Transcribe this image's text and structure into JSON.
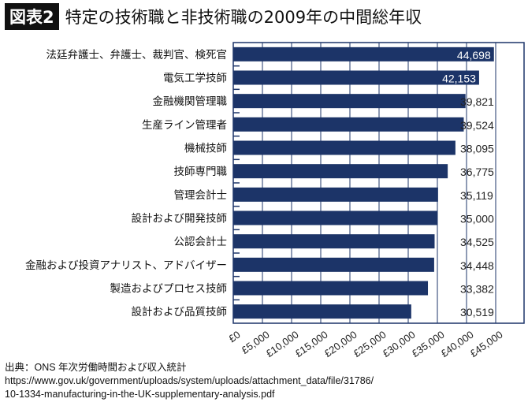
{
  "header": {
    "badge": "図表2",
    "title": "特定の技術職と非技術職の2009年の中間総年収"
  },
  "chart_data": {
    "type": "bar",
    "orientation": "horizontal",
    "categories": [
      "法廷弁護士、弁護士、裁判官、検死官",
      "電気工学技師",
      "金融機関管理職",
      "生産ライン管理者",
      "機械技師",
      "技師専門職",
      "管理会計士",
      "設計および開発技師",
      "公認会計士",
      "金融および投資アナリスト、アドバイザー",
      "製造およびプロセス技師",
      "設計および品質技師"
    ],
    "values": [
      44698,
      42153,
      39821,
      39524,
      38095,
      36775,
      35119,
      35000,
      34525,
      34448,
      33382,
      30519
    ],
    "value_labels": [
      "44,698",
      "42,153",
      "39,821",
      "39,524",
      "38,095",
      "36,775",
      "35,119",
      "35,000",
      "34,525",
      "34,448",
      "33,382",
      "30,519"
    ],
    "xticks": [
      "£0",
      "£5,000",
      "£10,000",
      "£15,000",
      "£20,000",
      "£25,000",
      "£30,000",
      "£35,000",
      "£40,000",
      "£45,000"
    ],
    "xlim": [
      0,
      45000
    ],
    "grid": true,
    "bar_color": "#1c3468"
  },
  "source": {
    "line1": "出典：ONS 年次労働時間および収入統計",
    "line2": "https://www.gov.uk/government/uploads/system/uploads/attachment_data/file/31786/",
    "line3": "10-1334-manufacturing-in-the-UK-supplementary-analysis.pdf"
  }
}
